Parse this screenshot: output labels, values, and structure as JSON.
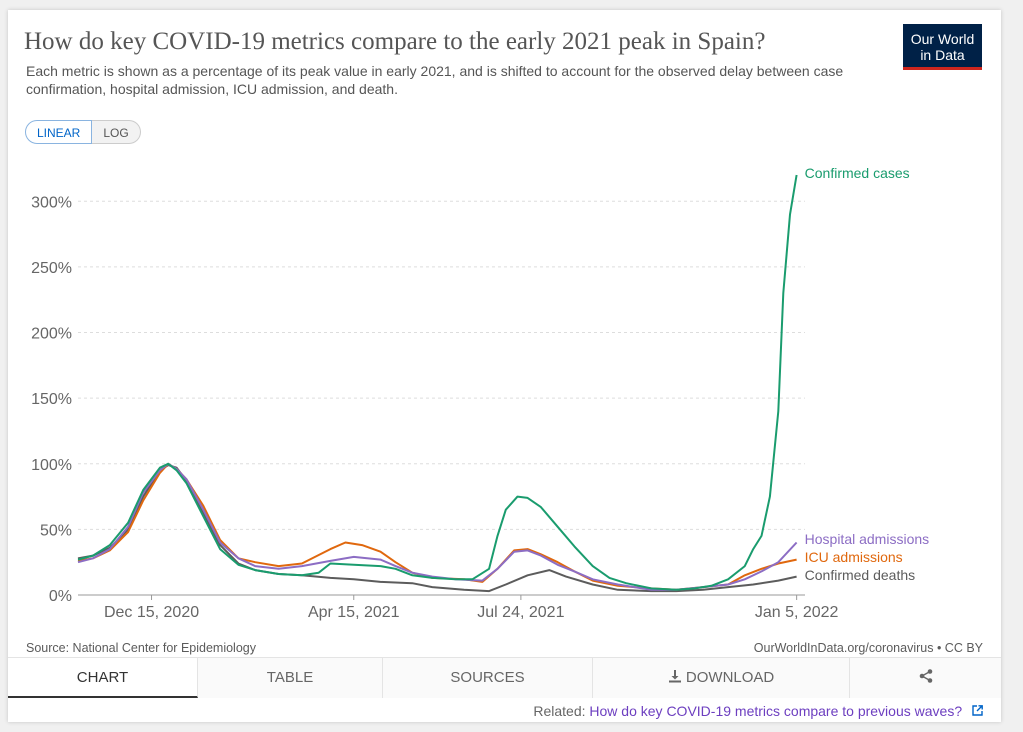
{
  "title": "How do key COVID-19 metrics compare to the early 2021 peak in Spain?",
  "subtitle": "Each metric is shown as a percentage of its peak value in early 2021, and is shifted to account for the observed delay between case confirmation, hospital admission, ICU admission, and death.",
  "logo": {
    "line1": "Our World",
    "line2": "in Data"
  },
  "scale_toggle": {
    "linear": "LINEAR",
    "log": "LOG",
    "selected": "LINEAR"
  },
  "source": "Source: National Center for Epidemiology",
  "license": "OurWorldInData.org/coronavirus • CC BY",
  "tabs": [
    {
      "label": "CHART",
      "active": true
    },
    {
      "label": "TABLE",
      "active": false
    },
    {
      "label": "SOURCES",
      "active": false
    },
    {
      "label": "DOWNLOAD",
      "active": false
    }
  ],
  "related": {
    "prefix": "Related:",
    "link": "How do key COVID-19 metrics compare to previous waves?"
  },
  "chart_data": {
    "type": "line",
    "x_type": "date",
    "xlim": [
      "2020-11-01",
      "2022-01-10"
    ],
    "ylim": [
      0,
      320
    ],
    "y_ticks": [
      0,
      50,
      100,
      150,
      200,
      250,
      300
    ],
    "y_tick_labels": [
      "0%",
      "50%",
      "100%",
      "150%",
      "200%",
      "250%",
      "300%"
    ],
    "x_ticks": [
      "2020-12-15",
      "2021-04-15",
      "2021-07-24",
      "2022-01-05"
    ],
    "x_tick_labels": [
      "Dec 15, 2020",
      "Apr 15, 2021",
      "Jul 24, 2021",
      "Jan 5, 2022"
    ],
    "grid": "horizontal-dashed",
    "legend": "line-end-labels",
    "series": [
      {
        "name": "Confirmed cases",
        "color": "#1a9c6e",
        "points": [
          [
            "2020-11-01",
            27
          ],
          [
            "2020-11-10",
            30
          ],
          [
            "2020-11-20",
            38
          ],
          [
            "2020-12-01",
            55
          ],
          [
            "2020-12-10",
            80
          ],
          [
            "2020-12-20",
            97
          ],
          [
            "2020-12-25",
            100
          ],
          [
            "2020-12-30",
            95
          ],
          [
            "2021-01-05",
            85
          ],
          [
            "2021-01-15",
            60
          ],
          [
            "2021-01-25",
            35
          ],
          [
            "2021-02-05",
            23
          ],
          [
            "2021-02-15",
            19
          ],
          [
            "2021-03-01",
            16
          ],
          [
            "2021-03-15",
            15
          ],
          [
            "2021-03-25",
            17
          ],
          [
            "2021-04-01",
            24
          ],
          [
            "2021-04-15",
            23
          ],
          [
            "2021-05-01",
            22
          ],
          [
            "2021-05-10",
            20
          ],
          [
            "2021-05-20",
            15
          ],
          [
            "2021-06-01",
            13
          ],
          [
            "2021-06-15",
            12
          ],
          [
            "2021-06-25",
            12
          ],
          [
            "2021-07-05",
            20
          ],
          [
            "2021-07-10",
            45
          ],
          [
            "2021-07-15",
            65
          ],
          [
            "2021-07-22",
            75
          ],
          [
            "2021-07-28",
            74
          ],
          [
            "2021-08-05",
            67
          ],
          [
            "2021-08-15",
            52
          ],
          [
            "2021-08-25",
            37
          ],
          [
            "2021-09-05",
            22
          ],
          [
            "2021-09-15",
            13
          ],
          [
            "2021-09-25",
            9
          ],
          [
            "2021-10-10",
            5
          ],
          [
            "2021-10-25",
            4
          ],
          [
            "2021-11-05",
            5
          ],
          [
            "2021-11-15",
            7
          ],
          [
            "2021-11-25",
            12
          ],
          [
            "2021-12-05",
            22
          ],
          [
            "2021-12-10",
            35
          ],
          [
            "2021-12-15",
            45
          ],
          [
            "2021-12-20",
            75
          ],
          [
            "2021-12-25",
            140
          ],
          [
            "2021-12-28",
            230
          ],
          [
            "2022-01-01",
            290
          ],
          [
            "2022-01-05",
            320
          ]
        ]
      },
      {
        "name": "Hospital admissions",
        "color": "#8c6dc4",
        "points": [
          [
            "2020-11-01",
            25
          ],
          [
            "2020-11-10",
            28
          ],
          [
            "2020-11-20",
            35
          ],
          [
            "2020-12-01",
            52
          ],
          [
            "2020-12-10",
            78
          ],
          [
            "2020-12-20",
            95
          ],
          [
            "2020-12-25",
            100
          ],
          [
            "2020-12-30",
            96
          ],
          [
            "2021-01-05",
            88
          ],
          [
            "2021-01-15",
            65
          ],
          [
            "2021-01-25",
            40
          ],
          [
            "2021-02-05",
            28
          ],
          [
            "2021-02-15",
            22
          ],
          [
            "2021-03-01",
            20
          ],
          [
            "2021-03-15",
            22
          ],
          [
            "2021-04-01",
            26
          ],
          [
            "2021-04-15",
            29
          ],
          [
            "2021-05-01",
            27
          ],
          [
            "2021-05-10",
            22
          ],
          [
            "2021-05-20",
            17
          ],
          [
            "2021-06-01",
            14
          ],
          [
            "2021-06-15",
            12
          ],
          [
            "2021-07-01",
            11
          ],
          [
            "2021-07-10",
            20
          ],
          [
            "2021-07-20",
            33
          ],
          [
            "2021-07-28",
            34
          ],
          [
            "2021-08-05",
            30
          ],
          [
            "2021-08-15",
            23
          ],
          [
            "2021-08-25",
            18
          ],
          [
            "2021-09-05",
            12
          ],
          [
            "2021-09-20",
            8
          ],
          [
            "2021-10-10",
            4
          ],
          [
            "2021-10-25",
            4
          ],
          [
            "2021-11-10",
            6
          ],
          [
            "2021-11-25",
            8
          ],
          [
            "2021-12-05",
            12
          ],
          [
            "2021-12-15",
            18
          ],
          [
            "2021-12-25",
            25
          ],
          [
            "2022-01-05",
            40
          ]
        ]
      },
      {
        "name": "ICU admissions",
        "color": "#e0680e",
        "points": [
          [
            "2020-11-01",
            26
          ],
          [
            "2020-11-10",
            28
          ],
          [
            "2020-11-20",
            34
          ],
          [
            "2020-12-01",
            48
          ],
          [
            "2020-12-10",
            72
          ],
          [
            "2020-12-20",
            93
          ],
          [
            "2020-12-25",
            100
          ],
          [
            "2020-12-30",
            96
          ],
          [
            "2021-01-05",
            88
          ],
          [
            "2021-01-15",
            68
          ],
          [
            "2021-01-25",
            42
          ],
          [
            "2021-02-05",
            28
          ],
          [
            "2021-02-15",
            25
          ],
          [
            "2021-03-01",
            22
          ],
          [
            "2021-03-15",
            24
          ],
          [
            "2021-04-01",
            35
          ],
          [
            "2021-04-10",
            40
          ],
          [
            "2021-04-20",
            38
          ],
          [
            "2021-05-01",
            33
          ],
          [
            "2021-05-10",
            25
          ],
          [
            "2021-05-20",
            17
          ],
          [
            "2021-06-01",
            13
          ],
          [
            "2021-06-20",
            12
          ],
          [
            "2021-07-01",
            10
          ],
          [
            "2021-07-10",
            20
          ],
          [
            "2021-07-20",
            34
          ],
          [
            "2021-07-28",
            35
          ],
          [
            "2021-08-05",
            31
          ],
          [
            "2021-08-15",
            25
          ],
          [
            "2021-08-25",
            18
          ],
          [
            "2021-09-05",
            11
          ],
          [
            "2021-09-20",
            7
          ],
          [
            "2021-10-10",
            5
          ],
          [
            "2021-10-25",
            4
          ],
          [
            "2021-11-10",
            6
          ],
          [
            "2021-11-25",
            8
          ],
          [
            "2021-12-05",
            15
          ],
          [
            "2021-12-15",
            20
          ],
          [
            "2021-12-25",
            24
          ],
          [
            "2022-01-05",
            27
          ]
        ]
      },
      {
        "name": "Confirmed deaths",
        "color": "#5c5c5c",
        "points": [
          [
            "2020-11-01",
            28
          ],
          [
            "2020-11-10",
            30
          ],
          [
            "2020-11-20",
            36
          ],
          [
            "2020-12-01",
            50
          ],
          [
            "2020-12-10",
            75
          ],
          [
            "2020-12-20",
            95
          ],
          [
            "2020-12-25",
            99
          ],
          [
            "2020-12-30",
            97
          ],
          [
            "2021-01-05",
            87
          ],
          [
            "2021-01-15",
            62
          ],
          [
            "2021-01-25",
            38
          ],
          [
            "2021-02-05",
            24
          ],
          [
            "2021-02-15",
            19
          ],
          [
            "2021-03-01",
            16
          ],
          [
            "2021-03-15",
            15
          ],
          [
            "2021-04-01",
            13
          ],
          [
            "2021-04-15",
            12
          ],
          [
            "2021-05-01",
            10
          ],
          [
            "2021-05-20",
            9
          ],
          [
            "2021-06-01",
            6
          ],
          [
            "2021-06-20",
            4
          ],
          [
            "2021-07-05",
            3
          ],
          [
            "2021-07-15",
            8
          ],
          [
            "2021-07-28",
            15
          ],
          [
            "2021-08-10",
            19
          ],
          [
            "2021-08-20",
            14
          ],
          [
            "2021-09-05",
            8
          ],
          [
            "2021-09-20",
            4
          ],
          [
            "2021-10-10",
            3
          ],
          [
            "2021-10-25",
            3
          ],
          [
            "2021-11-10",
            4
          ],
          [
            "2021-11-25",
            6
          ],
          [
            "2021-12-10",
            8
          ],
          [
            "2021-12-25",
            11
          ],
          [
            "2022-01-05",
            14
          ]
        ]
      }
    ]
  },
  "tab_icons": {
    "download": "download-icon",
    "share": "share-icon",
    "external": "external-link-icon"
  }
}
